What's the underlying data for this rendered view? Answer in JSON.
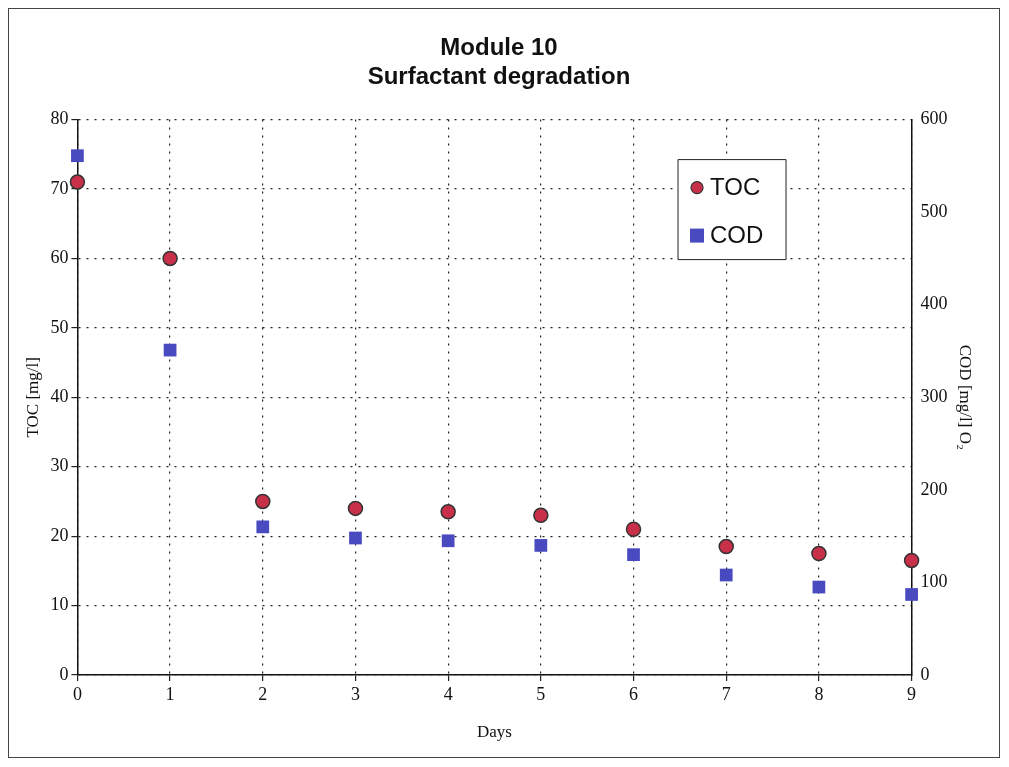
{
  "chart_data": {
    "type": "scatter",
    "title": [
      "Module 10",
      "Surfactant degradation"
    ],
    "xlabel": "Days",
    "ylabel": "TOC [mg/l]",
    "y2label": "COD [mg/l] O₂",
    "x": [
      0,
      1,
      2,
      3,
      4,
      5,
      6,
      7,
      8,
      9
    ],
    "series": [
      {
        "name": "TOC",
        "color": "#c8304a",
        "marker": "circle",
        "values": [
          71,
          60,
          25,
          24,
          23.5,
          23,
          21,
          18.5,
          17.5,
          16.5
        ]
      },
      {
        "name": "COD",
        "color": "#4a4ac0",
        "marker": "square",
        "axis": "y2",
        "values": [
          561,
          351,
          160,
          148,
          145,
          140,
          130,
          108,
          95,
          87
        ]
      }
    ],
    "xlim": [
      0,
      9
    ],
    "xticks": [
      0,
      1,
      2,
      3,
      4,
      5,
      6,
      7,
      8,
      9
    ],
    "ylim": [
      0,
      80
    ],
    "yticks": [
      0,
      10,
      20,
      30,
      40,
      50,
      60,
      70,
      80
    ],
    "y2lim": [
      0,
      600
    ],
    "y2ticks": [
      0,
      100,
      200,
      300,
      400,
      500,
      600
    ],
    "grid": true,
    "legend": "top right"
  }
}
